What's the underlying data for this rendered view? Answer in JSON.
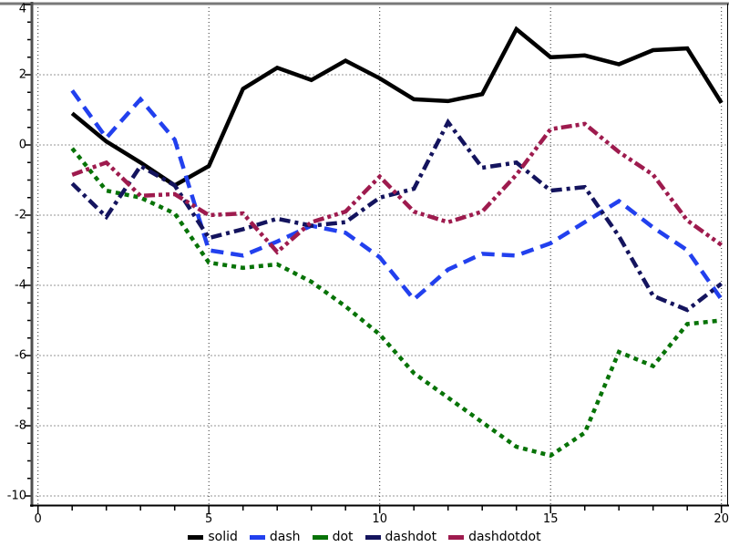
{
  "chart_data": {
    "type": "line",
    "x": [
      1,
      2,
      3,
      4,
      5,
      6,
      7,
      8,
      9,
      10,
      11,
      12,
      13,
      14,
      15,
      16,
      17,
      18,
      19,
      20
    ],
    "series": [
      {
        "name": "solid",
        "color": "#000000",
        "dash_style": "solid",
        "values": [
          0.9,
          0.1,
          -0.5,
          -1.15,
          -0.6,
          1.6,
          2.2,
          1.85,
          2.4,
          1.9,
          1.3,
          1.25,
          1.45,
          3.3,
          2.5,
          2.55,
          2.3,
          2.7,
          2.75,
          1.2
        ]
      },
      {
        "name": "dash",
        "color": "#2240ee",
        "dash_style": "dash",
        "values": [
          1.55,
          0.2,
          1.3,
          0.15,
          -3.0,
          -3.15,
          -2.75,
          -2.3,
          -2.5,
          -3.2,
          -4.4,
          -3.55,
          -3.1,
          -3.15,
          -2.8,
          -2.2,
          -1.6,
          -2.35,
          -3.0,
          -4.4
        ]
      },
      {
        "name": "dot",
        "color": "#077307",
        "dash_style": "dot",
        "values": [
          -0.1,
          -1.3,
          -1.5,
          -1.95,
          -3.35,
          -3.5,
          -3.4,
          -3.9,
          -4.6,
          -5.4,
          -6.5,
          -7.2,
          -7.9,
          -8.6,
          -8.85,
          -8.2,
          -5.9,
          -6.3,
          -5.1,
          -5.0
        ]
      },
      {
        "name": "dashdot",
        "color": "#14145e",
        "dash_style": "dashdot",
        "values": [
          -1.1,
          -2.05,
          -0.6,
          -1.15,
          -2.65,
          -2.4,
          -2.1,
          -2.3,
          -2.2,
          -1.5,
          -1.25,
          0.65,
          -0.65,
          -0.5,
          -1.3,
          -1.2,
          -2.6,
          -4.3,
          -4.7,
          -3.95
        ]
      },
      {
        "name": "dashdotdot",
        "color": "#9e1b4e",
        "dash_style": "dashdotdot",
        "values": [
          -0.85,
          -0.5,
          -1.45,
          -1.4,
          -2.0,
          -1.95,
          -3.05,
          -2.2,
          -1.9,
          -0.9,
          -1.9,
          -2.2,
          -1.9,
          -0.85,
          0.45,
          0.6,
          -0.2,
          -0.85,
          -2.15,
          -2.85
        ]
      }
    ],
    "title": "",
    "xlabel": "",
    "ylabel": "",
    "xlim": [
      0,
      20
    ],
    "ylim": [
      -10,
      4
    ],
    "xticks": [
      0,
      5,
      10,
      15,
      20
    ],
    "xtick_labels": [
      "0",
      "5",
      "10",
      "15",
      "20"
    ],
    "yticks": [
      4,
      2,
      0,
      -2,
      -4,
      -6,
      -8,
      -10
    ],
    "ytick_labels": [
      "4",
      "2",
      "0",
      "-2",
      "-4",
      "-6",
      "-8",
      "-10"
    ],
    "x_minor_step": 1,
    "y_minor_step": 0.5,
    "grid": "dotted",
    "legend_position": "bottom-center",
    "legend_labels": [
      "solid",
      "dash",
      "dot",
      "dashdot",
      "dashdotdot"
    ]
  },
  "colors": {
    "background": "#ffffff",
    "grid": "#2a2a2a",
    "axis_bottom": "#000000",
    "frame_left": "#4f4f4f",
    "frame_top": "#787878"
  }
}
